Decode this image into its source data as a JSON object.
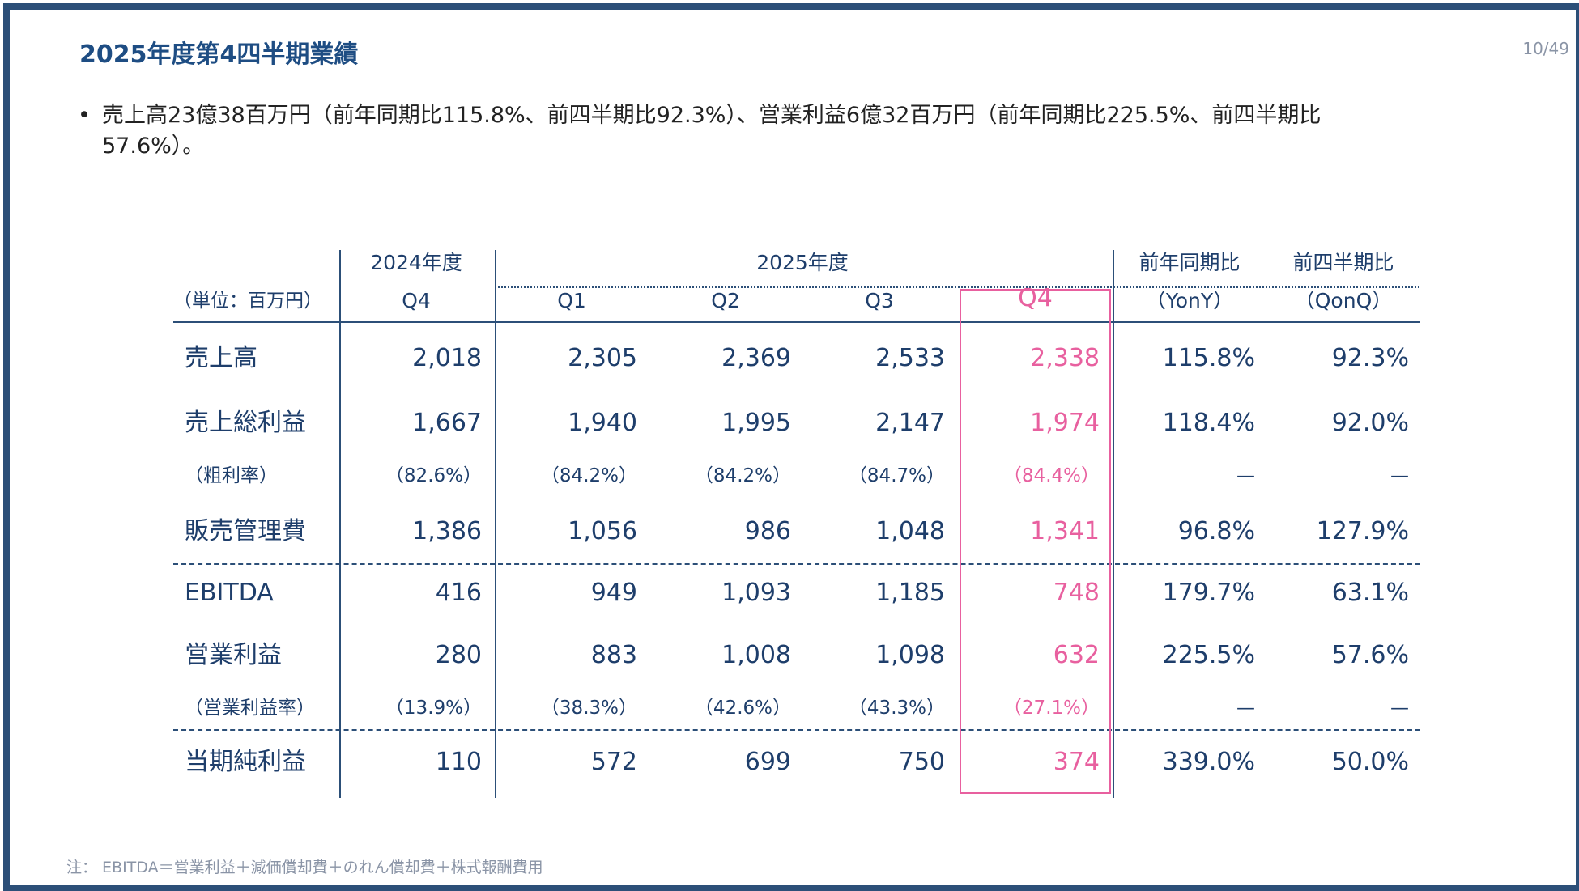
{
  "slide": {
    "title": "2025年度第4四半期業績",
    "page_number": "10/49",
    "bullet": {
      "marker": "•",
      "text": "売上高23億38百万円（前年同期比115.8%、前四半期比92.3%）、営業利益6億32百万円（前年同期比225.5%、前四半期比57.6%）。"
    },
    "note": "注： EBITDA＝営業利益＋減価償却費＋のれん償却費＋株式報酬費用"
  },
  "table": {
    "unit": "（単位：百万円）",
    "header_top": [
      "2024年度",
      "2025年度",
      "前年同期比",
      "前四半期比"
    ],
    "header_sub": [
      "Q4",
      "Q1",
      "Q2",
      "Q3",
      "Q4",
      "（YonY）",
      "（QonQ）"
    ],
    "rows": [
      {
        "label": "売上高",
        "values": [
          "2,018",
          "2,305",
          "2,369",
          "2,533",
          "2,338",
          "115.8%",
          "92.3%"
        ]
      },
      {
        "label": "売上総利益",
        "values": [
          "1,667",
          "1,940",
          "1,995",
          "2,147",
          "1,974",
          "118.4%",
          "92.0%"
        ]
      },
      {
        "label": "（粗利率）",
        "values": [
          "（82.6%）",
          "（84.2%）",
          "（84.2%）",
          "（84.7%）",
          "（84.4%）",
          "—",
          "—"
        ]
      },
      {
        "label": "販売管理費",
        "values": [
          "1,386",
          "1,056",
          "986",
          "1,048",
          "1,341",
          "96.8%",
          "127.9%"
        ]
      },
      {
        "label": "EBITDA",
        "values": [
          "416",
          "949",
          "1,093",
          "1,185",
          "748",
          "179.7%",
          "63.1%"
        ]
      },
      {
        "label": "営業利益",
        "values": [
          "280",
          "883",
          "1,008",
          "1,098",
          "632",
          "225.5%",
          "57.6%"
        ]
      },
      {
        "label": "（営業利益率）",
        "values": [
          "（13.9%）",
          "（38.3%）",
          "（42.6%）",
          "（43.3%）",
          "（27.1%）",
          "—",
          "—"
        ]
      },
      {
        "label": "当期純利益",
        "values": [
          "110",
          "572",
          "699",
          "750",
          "374",
          "339.0%",
          "50.0%"
        ]
      }
    ]
  },
  "colors": {
    "primary": "#1e4d83",
    "table_text": "#1e3e6b",
    "highlight": "#e8609f",
    "frame": "#2c4f78",
    "muted": "#8a94a6"
  }
}
